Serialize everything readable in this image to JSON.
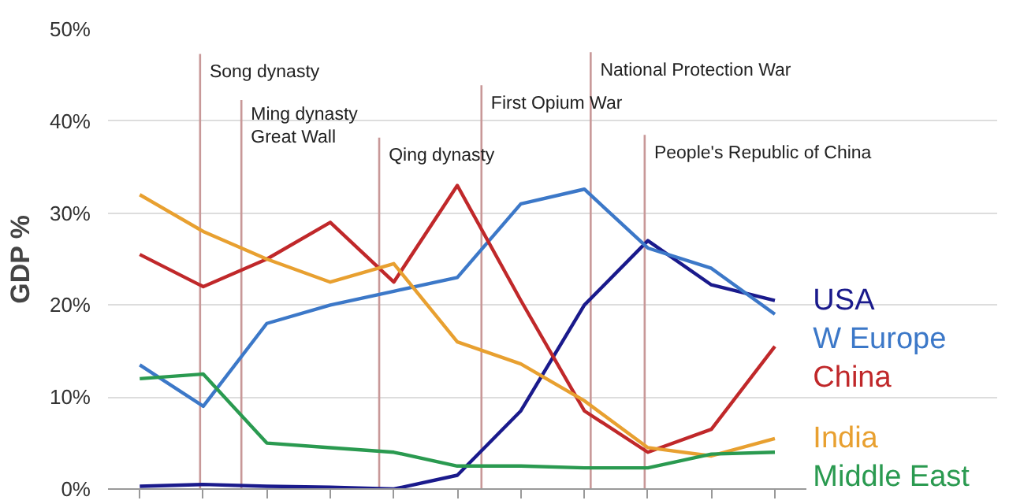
{
  "chart_data": {
    "type": "line",
    "ylabel": "GDP %",
    "ylim": [
      0,
      50
    ],
    "yticks": [
      {
        "value": 0,
        "label": "0%"
      },
      {
        "value": 10,
        "label": "10%"
      },
      {
        "value": 20,
        "label": "20%"
      },
      {
        "value": 30,
        "label": "30%"
      },
      {
        "value": 40,
        "label": "40%"
      },
      {
        "value": 50,
        "label": "50%"
      }
    ],
    "grid": "y",
    "tick_labels": "y",
    "categories": [
      null,
      null,
      null,
      null,
      null,
      null,
      null,
      null,
      null,
      null,
      null
    ],
    "series": [
      {
        "name": "USA",
        "color": "#1a1a8c",
        "values": [
          0.3,
          0.5,
          0.3,
          0.2,
          0,
          1.5,
          8.5,
          20,
          27,
          22.2,
          20.5
        ]
      },
      {
        "name": "W Europe",
        "color": "#3c78c8",
        "values": [
          13.5,
          9,
          18,
          20,
          21.5,
          23,
          31,
          32.6,
          26.2,
          24,
          19
        ]
      },
      {
        "name": "China",
        "color": "#c0282a",
        "values": [
          25.5,
          22,
          25,
          29,
          22.5,
          33,
          20.5,
          8.5,
          4,
          6.5,
          15.5
        ]
      },
      {
        "name": "India",
        "color": "#e8a030",
        "values": [
          32,
          28,
          25,
          22.5,
          24.5,
          16,
          13.6,
          9.6,
          4.5,
          3.6,
          5.5
        ]
      },
      {
        "name": "Middle East",
        "color": "#2a9a50",
        "values": [
          12,
          12.5,
          5,
          4.5,
          4,
          2.5,
          2.5,
          2.3,
          2.3,
          3.8,
          4
        ]
      }
    ],
    "annotations": [
      "Song dynasty",
      "Ming dynasty\nGreat Wall",
      "Qing dynasty",
      "First Opium War",
      "National Protection War",
      "People's Republic of China"
    ]
  }
}
